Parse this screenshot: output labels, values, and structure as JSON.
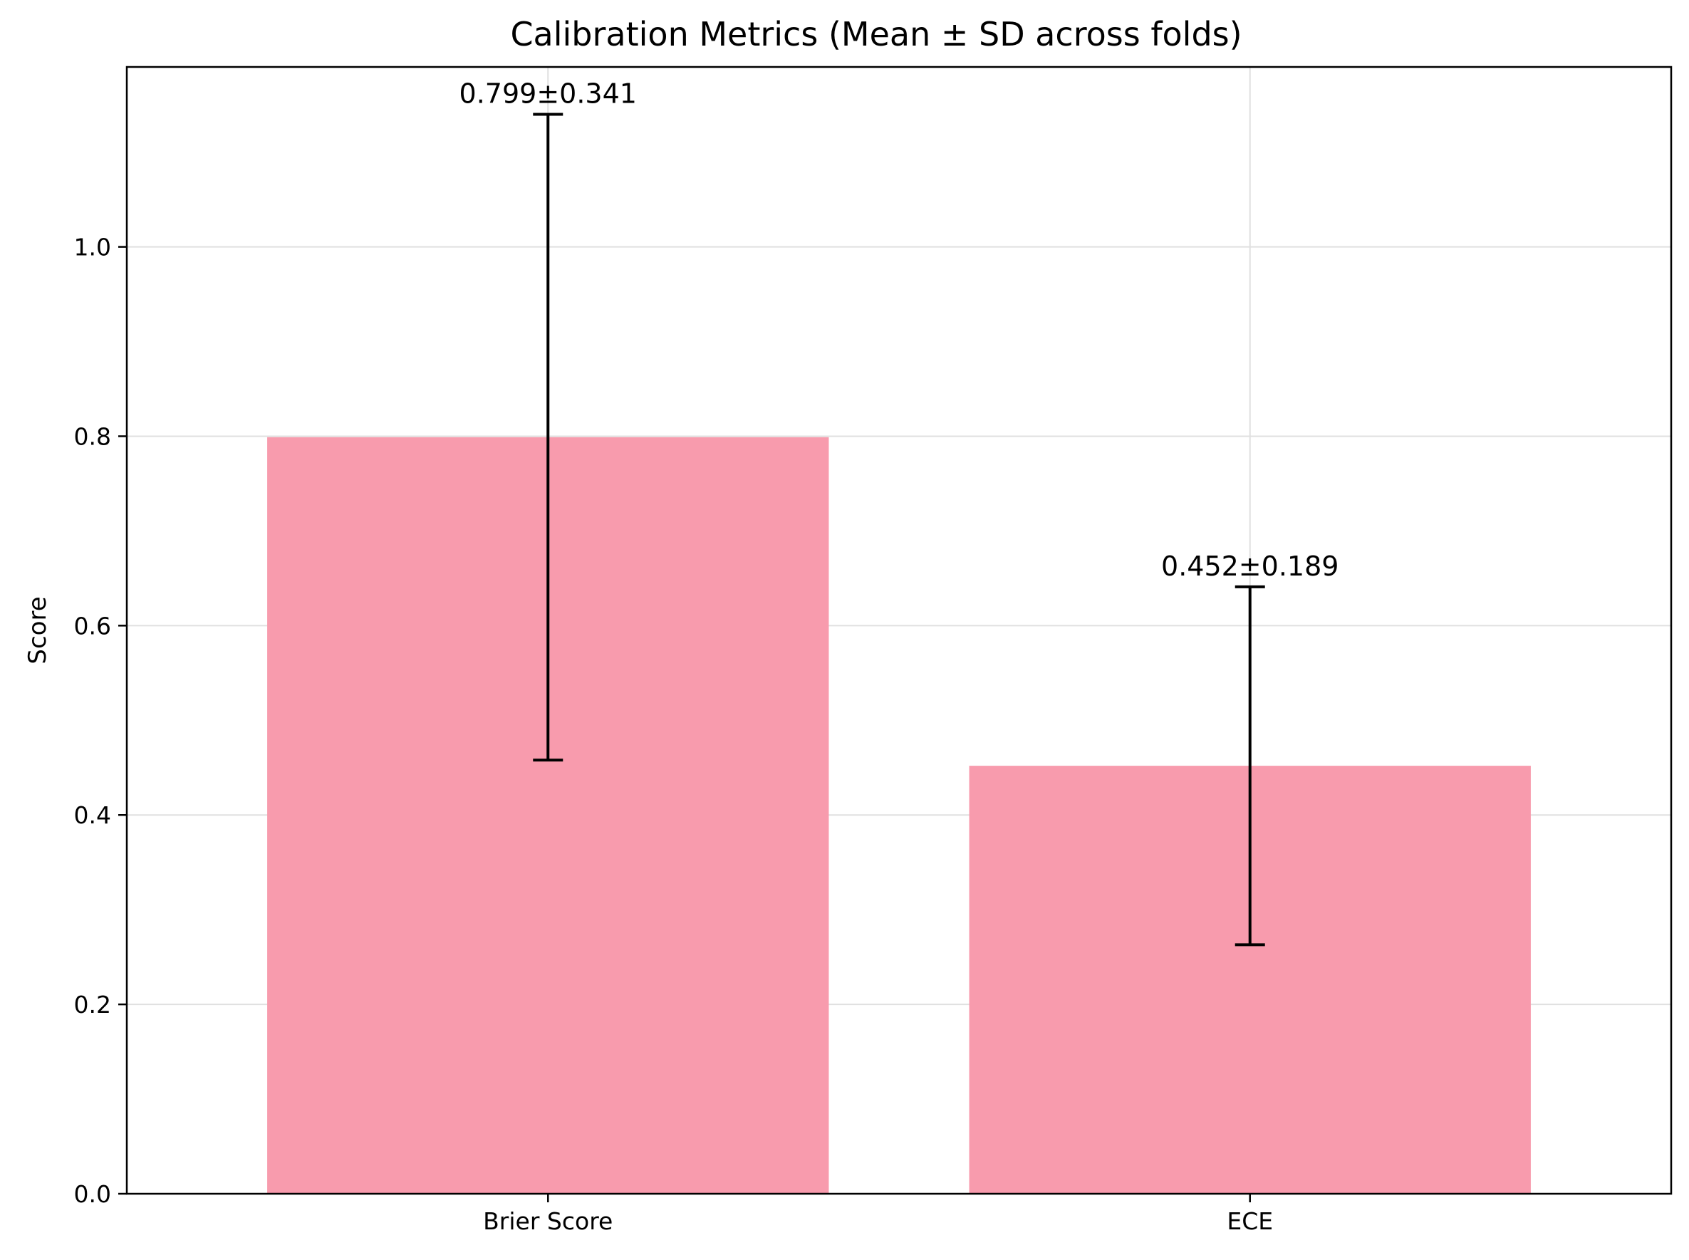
{
  "chart_data": {
    "type": "bar",
    "title": "Calibration Metrics (Mean ± SD across folds)",
    "xlabel": "",
    "ylabel": "Score",
    "categories": [
      "Brier Score",
      "ECE"
    ],
    "values": [
      0.799,
      0.452
    ],
    "errors": [
      0.341,
      0.189
    ],
    "annotations": [
      "0.799±0.341",
      "0.452±0.189"
    ],
    "ylim": [
      0,
      1.19
    ],
    "yticks": [
      0.0,
      0.2,
      0.4,
      0.6,
      0.8,
      1.0
    ],
    "ytick_labels": [
      "0.0",
      "0.2",
      "0.4",
      "0.6",
      "0.8",
      "1.0"
    ],
    "grid": true,
    "bar_color": "#f89bad",
    "error_color": "#000000"
  }
}
